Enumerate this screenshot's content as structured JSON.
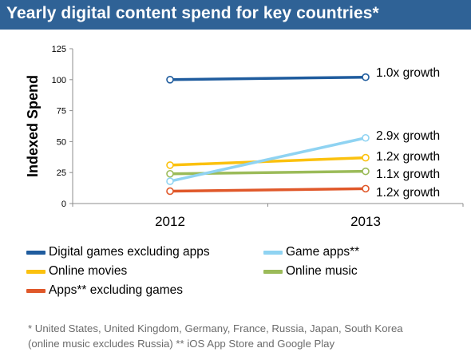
{
  "header": {
    "title": "Yearly digital content spend for key countries*"
  },
  "chart_data": {
    "type": "line",
    "title": "Yearly digital content spend for key countries*",
    "xlabel": "",
    "ylabel": "Indexed Spend",
    "categories": [
      "2012",
      "2013"
    ],
    "ylim": [
      0,
      125
    ],
    "yticks": [
      0,
      25,
      50,
      75,
      100,
      125
    ],
    "grid": false,
    "legend_position": "bottom",
    "series": [
      {
        "name": "Digital games excluding apps",
        "values": [
          100,
          102
        ],
        "color": "#1f5c9e",
        "label": "1.0x growth"
      },
      {
        "name": "Game apps**",
        "values": [
          18,
          53
        ],
        "color": "#8fd3f2",
        "label": "2.9x growth"
      },
      {
        "name": "Online movies",
        "values": [
          31,
          37
        ],
        "color": "#fbc10e",
        "label": "1.2x growth"
      },
      {
        "name": "Online music",
        "values": [
          24,
          26
        ],
        "color": "#9bbb59",
        "label": "1.1x growth"
      },
      {
        "name": "Apps** excluding games",
        "values": [
          10,
          12
        ],
        "color": "#e0582a",
        "label": "1.2x growth"
      }
    ]
  },
  "footnote": {
    "line1": "* United States, United Kingdom, Germany, France, Russia, Japan, South Korea",
    "line2": "(online music excludes Russia) ** iOS App Store and Google Play"
  }
}
